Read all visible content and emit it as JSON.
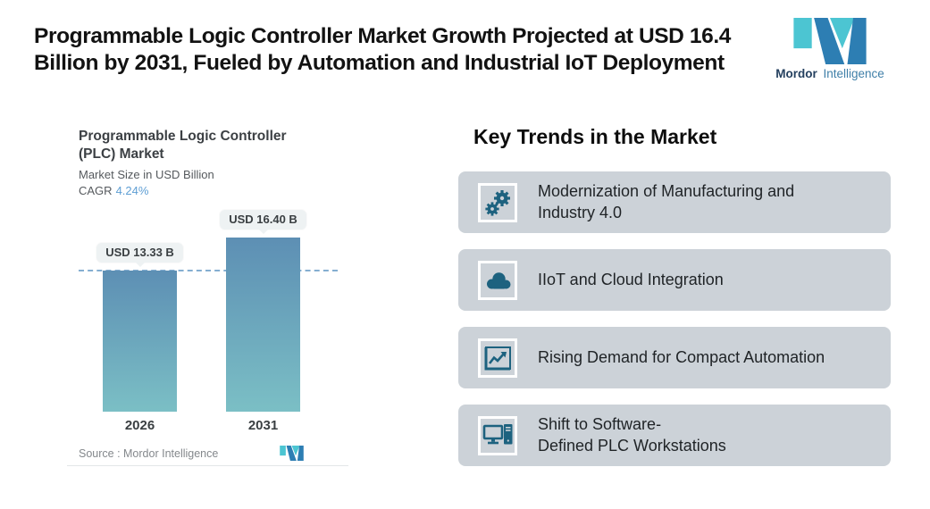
{
  "header": {
    "title_line1": "Programmable Logic Controller Market Growth Projected at USD 16.4",
    "title_line2": "Billion by 2031, Fueled by Automation and Industrial IoT Deployment"
  },
  "brand": {
    "name_bold": "Mordor",
    "name_light": "Intelligence"
  },
  "chart": {
    "title_line1": "Programmable Logic Controller",
    "title_line2": "(PLC) Market",
    "subtitle": "Market Size in USD Billion",
    "cagr_label": "CAGR",
    "cagr_value": "4.24%",
    "source_label": "Source :  Mordor Intelligence"
  },
  "chart_data": {
    "type": "bar",
    "title": "Programmable Logic Controller (PLC) Market",
    "subtitle": "Market Size in USD Billion",
    "cagr": "4.24%",
    "categories": [
      "2026",
      "2031"
    ],
    "values": [
      13.33,
      16.4
    ],
    "value_labels": [
      "USD 13.33 B",
      "USD 16.40 B"
    ],
    "unit": "USD Billion",
    "ylim": [
      0,
      16.4
    ],
    "reference_line": {
      "y": 13.33,
      "style": "dashed"
    },
    "grid": false,
    "legend": false,
    "source": "Mordor Intelligence"
  },
  "trends": {
    "heading": "Key Trends in the Market",
    "items": [
      {
        "icon": "gears-icon",
        "line1": "Modernization of Manufacturing and",
        "line2": "Industry 4.0"
      },
      {
        "icon": "cloud-icon",
        "line1": "IIoT and Cloud Integration",
        "line2": ""
      },
      {
        "icon": "line-chart-icon",
        "line1": "Rising Demand for Compact Automation",
        "line2": ""
      },
      {
        "icon": "workstation-icon",
        "line1": "Shift to Software-",
        "line2": "Defined PLC Workstations"
      }
    ]
  },
  "colors": {
    "page_bg": "#ffffff",
    "accent_blue": "#5f9fd4",
    "icon_teal": "#1d627f",
    "card_bg": "#ccd2d8",
    "bar_top": "#5d8fb4",
    "bar_bottom": "#7bbfc5",
    "dashed_line": "#85aed1",
    "badge_bg": "#eef2f3",
    "logo_teal": "#4cc5d2",
    "logo_blue": "#2d7eb3",
    "brand_dark": "#24405f",
    "brand_light": "#3f7fa8"
  }
}
